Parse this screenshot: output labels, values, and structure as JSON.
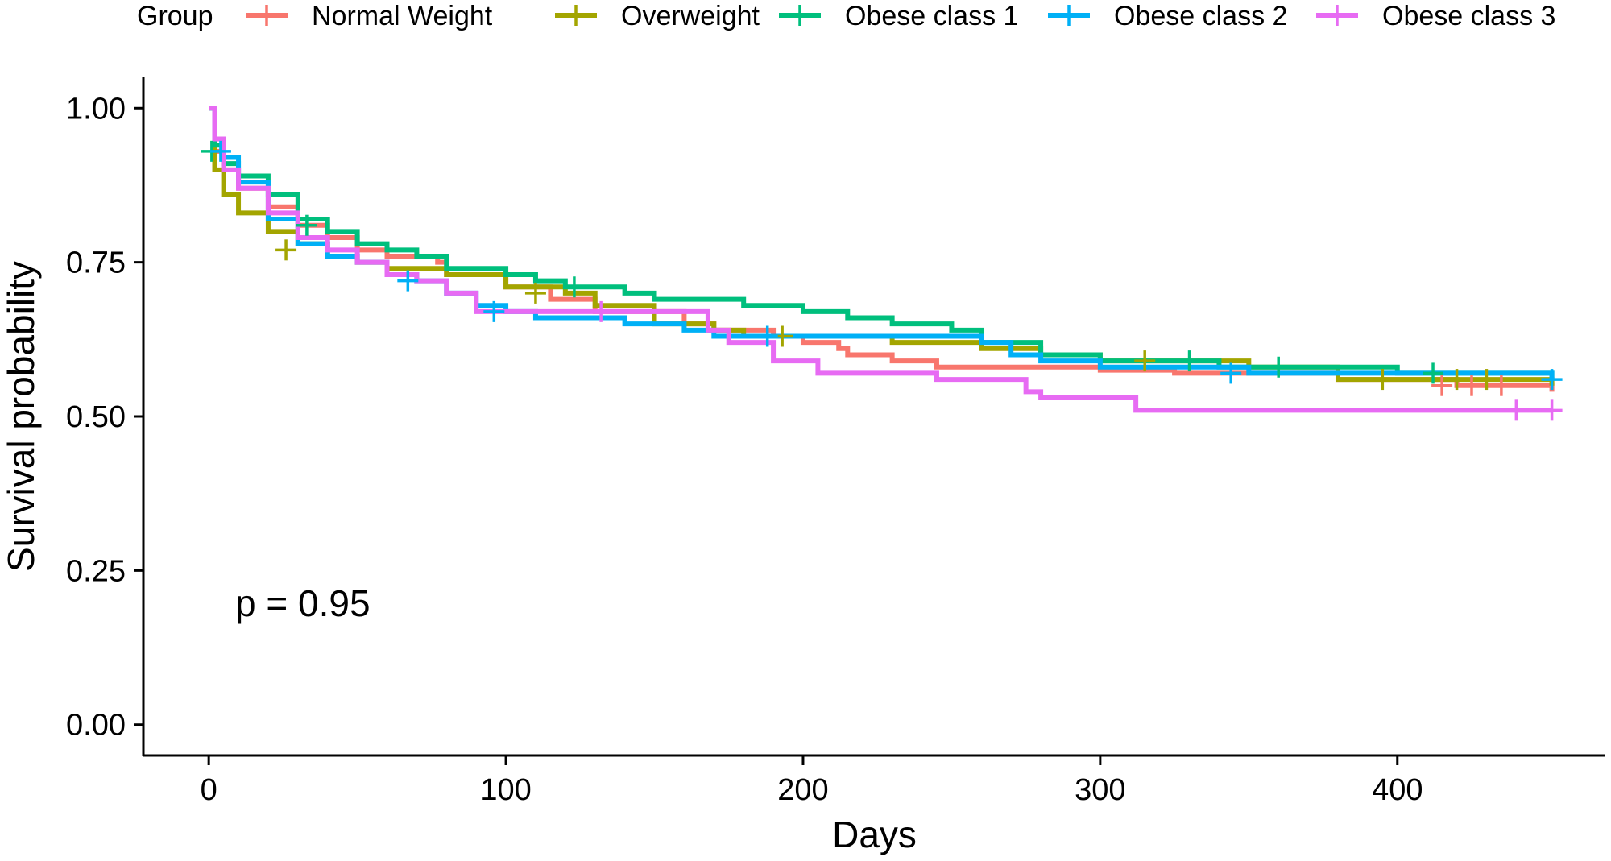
{
  "chart_data": {
    "type": "line",
    "subtype": "kaplan-meier survival curve",
    "xlabel": "Days",
    "ylabel": "Survival probability",
    "xlim": [
      -22,
      470
    ],
    "ylim": [
      -0.05,
      1.05
    ],
    "x_ticks": [
      0,
      100,
      200,
      300,
      400
    ],
    "y_ticks": [
      0,
      0.25,
      0.5,
      0.75,
      1.0
    ],
    "y_tick_labels": [
      "0.00",
      "0.25",
      "0.50",
      "0.75",
      "1.00"
    ],
    "grid": false,
    "legend": {
      "title": "Group",
      "position": "top"
    },
    "annotation": "p = 0.95",
    "series": [
      {
        "name": "Normal Weight",
        "color": "#F8766D",
        "points": [
          [
            0,
            1.0
          ],
          [
            2,
            0.93
          ],
          [
            5,
            0.9
          ],
          [
            10,
            0.87
          ],
          [
            20,
            0.84
          ],
          [
            30,
            0.81
          ],
          [
            40,
            0.79
          ],
          [
            50,
            0.77
          ],
          [
            60,
            0.76
          ],
          [
            77,
            0.75
          ],
          [
            80,
            0.73
          ],
          [
            100,
            0.71
          ],
          [
            115,
            0.69
          ],
          [
            130,
            0.67
          ],
          [
            160,
            0.65
          ],
          [
            170,
            0.64
          ],
          [
            190,
            0.63
          ],
          [
            200,
            0.62
          ],
          [
            212,
            0.61
          ],
          [
            215,
            0.6
          ],
          [
            230,
            0.59
          ],
          [
            245,
            0.58
          ],
          [
            270,
            0.58
          ],
          [
            300,
            0.575
          ],
          [
            320,
            0.575
          ],
          [
            325,
            0.57
          ],
          [
            380,
            0.56
          ],
          [
            420,
            0.55
          ],
          [
            452,
            0.54
          ]
        ],
        "censored": [
          [
            415,
            0.55
          ],
          [
            425,
            0.55
          ],
          [
            435,
            0.55
          ]
        ]
      },
      {
        "name": "Overweight",
        "color": "#A3A500",
        "points": [
          [
            0,
            1.0
          ],
          [
            2,
            0.9
          ],
          [
            5,
            0.86
          ],
          [
            10,
            0.83
          ],
          [
            20,
            0.8
          ],
          [
            30,
            0.78
          ],
          [
            40,
            0.76
          ],
          [
            50,
            0.75
          ],
          [
            60,
            0.74
          ],
          [
            80,
            0.73
          ],
          [
            100,
            0.71
          ],
          [
            120,
            0.7
          ],
          [
            130,
            0.68
          ],
          [
            150,
            0.65
          ],
          [
            170,
            0.64
          ],
          [
            180,
            0.63
          ],
          [
            200,
            0.63
          ],
          [
            230,
            0.62
          ],
          [
            260,
            0.61
          ],
          [
            280,
            0.6
          ],
          [
            300,
            0.59
          ],
          [
            350,
            0.58
          ],
          [
            380,
            0.56
          ],
          [
            452,
            0.55
          ]
        ],
        "censored": [
          [
            26,
            0.77
          ],
          [
            110,
            0.7
          ],
          [
            193,
            0.63
          ],
          [
            315,
            0.59
          ],
          [
            395,
            0.56
          ],
          [
            420,
            0.56
          ],
          [
            430,
            0.56
          ]
        ]
      },
      {
        "name": "Obese class 1",
        "color": "#00BF7D",
        "points": [
          [
            0,
            1.0
          ],
          [
            2,
            0.94
          ],
          [
            5,
            0.91
          ],
          [
            10,
            0.89
          ],
          [
            20,
            0.86
          ],
          [
            30,
            0.82
          ],
          [
            40,
            0.8
          ],
          [
            50,
            0.78
          ],
          [
            60,
            0.77
          ],
          [
            70,
            0.76
          ],
          [
            80,
            0.74
          ],
          [
            100,
            0.73
          ],
          [
            110,
            0.72
          ],
          [
            120,
            0.71
          ],
          [
            140,
            0.7
          ],
          [
            150,
            0.69
          ],
          [
            170,
            0.69
          ],
          [
            180,
            0.68
          ],
          [
            200,
            0.67
          ],
          [
            215,
            0.66
          ],
          [
            230,
            0.65
          ],
          [
            250,
            0.64
          ],
          [
            260,
            0.62
          ],
          [
            280,
            0.6
          ],
          [
            300,
            0.59
          ],
          [
            340,
            0.58
          ],
          [
            400,
            0.57
          ],
          [
            452,
            0.56
          ]
        ],
        "censored": [
          [
            1,
            0.93
          ],
          [
            33,
            0.81
          ],
          [
            123,
            0.71
          ],
          [
            330,
            0.59
          ],
          [
            360,
            0.58
          ],
          [
            412,
            0.57
          ]
        ]
      },
      {
        "name": "Obese class 2",
        "color": "#00B0F6",
        "points": [
          [
            0,
            1.0
          ],
          [
            2,
            0.95
          ],
          [
            5,
            0.92
          ],
          [
            10,
            0.88
          ],
          [
            20,
            0.82
          ],
          [
            30,
            0.78
          ],
          [
            40,
            0.76
          ],
          [
            50,
            0.75
          ],
          [
            60,
            0.73
          ],
          [
            70,
            0.72
          ],
          [
            80,
            0.7
          ],
          [
            90,
            0.68
          ],
          [
            100,
            0.67
          ],
          [
            110,
            0.66
          ],
          [
            140,
            0.65
          ],
          [
            160,
            0.64
          ],
          [
            170,
            0.63
          ],
          [
            200,
            0.63
          ],
          [
            240,
            0.63
          ],
          [
            260,
            0.62
          ],
          [
            270,
            0.6
          ],
          [
            280,
            0.59
          ],
          [
            300,
            0.58
          ],
          [
            350,
            0.57
          ],
          [
            452,
            0.56
          ]
        ],
        "censored": [
          [
            4,
            0.93
          ],
          [
            67,
            0.72
          ],
          [
            96,
            0.67
          ],
          [
            188,
            0.63
          ],
          [
            344,
            0.57
          ],
          [
            452,
            0.56
          ]
        ]
      },
      {
        "name": "Obese class 3",
        "color": "#E76BF3",
        "points": [
          [
            0,
            1.0
          ],
          [
            2,
            0.95
          ],
          [
            5,
            0.9
          ],
          [
            10,
            0.87
          ],
          [
            20,
            0.83
          ],
          [
            30,
            0.79
          ],
          [
            40,
            0.77
          ],
          [
            50,
            0.75
          ],
          [
            60,
            0.73
          ],
          [
            70,
            0.72
          ],
          [
            80,
            0.7
          ],
          [
            90,
            0.67
          ],
          [
            100,
            0.67
          ],
          [
            130,
            0.67
          ],
          [
            165,
            0.67
          ],
          [
            168,
            0.64
          ],
          [
            175,
            0.62
          ],
          [
            188,
            0.62
          ],
          [
            190,
            0.59
          ],
          [
            200,
            0.59
          ],
          [
            205,
            0.57
          ],
          [
            240,
            0.57
          ],
          [
            245,
            0.56
          ],
          [
            270,
            0.56
          ],
          [
            275,
            0.54
          ],
          [
            280,
            0.53
          ],
          [
            310,
            0.53
          ],
          [
            312,
            0.51
          ],
          [
            452,
            0.51
          ]
        ],
        "censored": [
          [
            132,
            0.67
          ],
          [
            440,
            0.51
          ],
          [
            452,
            0.51
          ]
        ]
      }
    ]
  }
}
